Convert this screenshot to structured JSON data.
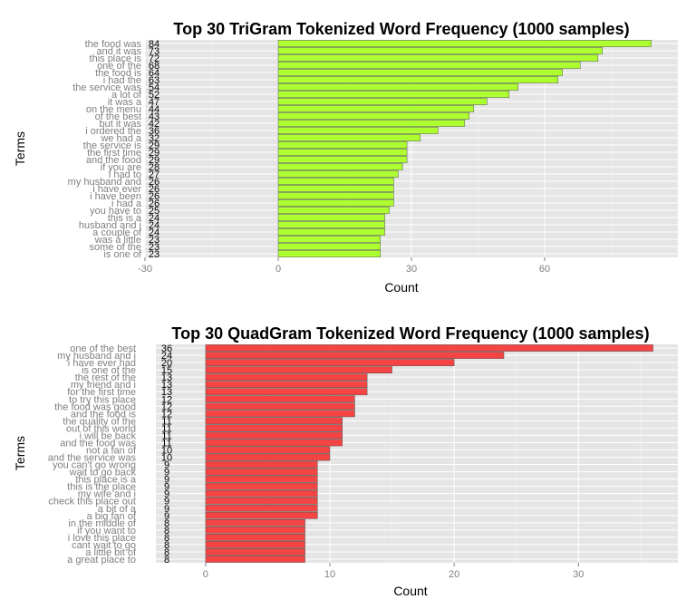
{
  "chart_data": [
    {
      "type": "bar",
      "orientation": "horizontal",
      "title": "Top 30 TriGram Tokenized Word Frequency (1000 samples)",
      "xlabel": "Count",
      "ylabel": "Terms",
      "xlim": [
        -30,
        90
      ],
      "xticks": [
        -30,
        0,
        30,
        60
      ],
      "grid": true,
      "bar_color": "#adff2f",
      "categories": [
        "the food was",
        "and it was",
        "this place is",
        "one of the",
        "the food is",
        "i had the",
        "the service was",
        "a lot of",
        "it was a",
        "on the menu",
        "of the best",
        "but it was",
        "i ordered the",
        "we had a",
        "the service is",
        "the first time",
        "and the food",
        "if you are",
        "i had to",
        "my husband and",
        "i have ever",
        "i have been",
        "i had a",
        "you have to",
        "this is a",
        "husband and i",
        "a couple of",
        "was a little",
        "some of the",
        "is one of"
      ],
      "values": [
        84,
        73,
        72,
        68,
        64,
        63,
        54,
        52,
        47,
        44,
        43,
        42,
        36,
        32,
        29,
        29,
        29,
        28,
        27,
        26,
        26,
        26,
        26,
        25,
        24,
        24,
        24,
        23,
        23,
        23
      ],
      "value_labels": [
        "84",
        "73",
        "72",
        "68",
        "64",
        "63",
        "54",
        "52",
        "47",
        "44",
        "43",
        "42",
        "36",
        "32",
        "29",
        "29",
        "29",
        "28",
        "27",
        "26",
        "26",
        "26",
        "26",
        "25",
        "24",
        "24",
        "24",
        "23",
        "23",
        "23"
      ]
    },
    {
      "type": "bar",
      "orientation": "horizontal",
      "title": "Top 30 QuadGram Tokenized Word Frequency (1000 samples)",
      "xlabel": "Count",
      "ylabel": "Terms",
      "xlim": [
        -4,
        38
      ],
      "xticks": [
        0,
        10,
        20,
        30
      ],
      "grid": true,
      "bar_color": "#f44444",
      "categories": [
        "one of the best",
        "my husband and i",
        "i have ever had",
        "is one of the",
        "the rest of the",
        "my friend and i",
        "for the first time",
        "to try this place",
        "the food was good",
        "and the food is",
        "the quality of the",
        "out of this world",
        "i will be back",
        "and the food was",
        "not a fan of",
        "and the service was",
        "you can't go wrong",
        "wait to go back",
        "this place is a",
        "this is the place",
        "my wife and i",
        "check this place out",
        "a bit of a",
        "a big fan of",
        "in the middle of",
        "if you want to",
        "i love this place",
        "cant wait to go",
        "a little bit of",
        "a great place to"
      ],
      "values": [
        36,
        24,
        20,
        15,
        13,
        13,
        13,
        12,
        12,
        12,
        11,
        11,
        11,
        11,
        10,
        10,
        9,
        9,
        9,
        9,
        9,
        9,
        9,
        9,
        8,
        8,
        8,
        8,
        8,
        8
      ],
      "value_labels": [
        "36",
        "24",
        "20",
        "15",
        "13",
        "13",
        "13",
        "12",
        "12",
        "12",
        "11",
        "11",
        "11",
        "11",
        "10",
        "10",
        "9",
        "9",
        "9",
        "9",
        "9",
        "9",
        "9",
        "9",
        "8",
        "8",
        "8",
        "8",
        "8",
        "8"
      ]
    }
  ]
}
